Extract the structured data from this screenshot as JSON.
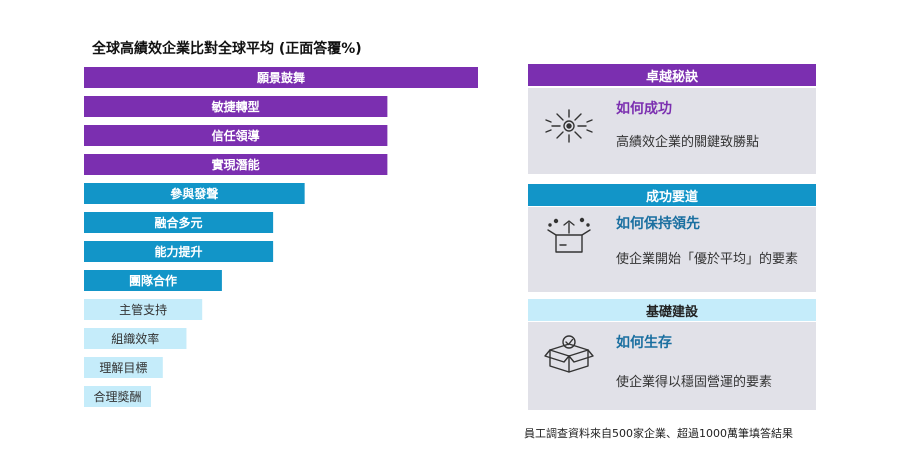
{
  "title": "全球高績效企業比對全球平均 (正面答覆%)",
  "colors": {
    "purple": "#7b2fb0",
    "blue": "#1295c8",
    "light_blue": "#c5ecfa",
    "card_bg": "#e1e1e8"
  },
  "chart_data": {
    "type": "bar",
    "orientation": "horizontal",
    "title": "全球高績效企業比對全球平均 (正面答覆%)",
    "categories": [
      "願景鼓舞",
      "敏捷轉型",
      "信任領導",
      "實現潛能",
      "參與發聲",
      "融合多元",
      "能力提升",
      "團隊合作",
      "主管支持",
      "組織效率",
      "理解目標",
      "合理獎酬"
    ],
    "values": [
      100,
      77,
      77,
      77,
      56,
      48,
      48,
      35,
      30,
      26,
      20,
      17
    ],
    "groups": [
      "卓越秘訣",
      "卓越秘訣",
      "卓越秘訣",
      "卓越秘訣",
      "成功要道",
      "成功要道",
      "成功要道",
      "成功要道",
      "基礎建設",
      "基礎建設",
      "基礎建設",
      "基礎建設"
    ],
    "xlim": [
      0,
      100
    ]
  },
  "cards": [
    {
      "header": "卓越秘訣",
      "subtitle": "如何成功",
      "desc": "高績效企業的關鍵致勝點",
      "icon": "sparkle-icon"
    },
    {
      "header": "成功要道",
      "subtitle": "如何保持領先",
      "desc": "使企業開始「優於平均」的要素",
      "icon": "open-box-icon"
    },
    {
      "header": "基礎建設",
      "subtitle": "如何生存",
      "desc": "使企業得以穩固營運的要素",
      "icon": "box-check-icon"
    }
  ],
  "footnote": "員工調查資料來自500家企業、超過1000萬筆填答結果"
}
